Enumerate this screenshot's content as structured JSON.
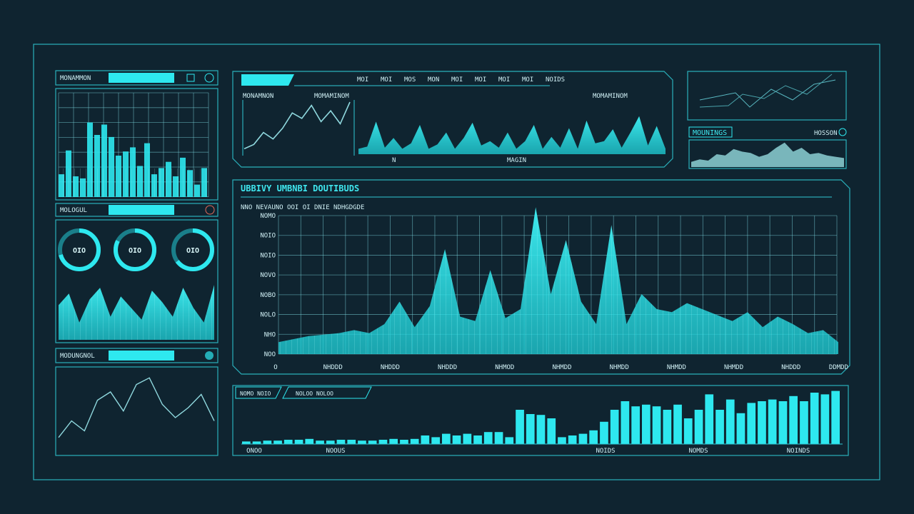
{
  "colors": {
    "background": "#0f2430",
    "accent": "#2ee8ef",
    "accent_dim": "#1a7f8a",
    "frame": "#2fc9d4",
    "text": "#d9f6f8"
  },
  "header": {
    "tabs": [
      "MOI",
      "MOI",
      "MOS",
      "MON",
      "MOI",
      "MOI",
      "MOI",
      "MOI",
      "NOIDS"
    ]
  },
  "left_top": {
    "title": "MONAMMON"
  },
  "left_mid": {
    "title": "MOLOGUL",
    "gauges": [
      {
        "label": "OIO"
      },
      {
        "label": "OIO"
      },
      {
        "label": "OIO"
      }
    ]
  },
  "left_bottom": {
    "title": "MODUNGNOL"
  },
  "top_center": {
    "left_label": "MONAMNON",
    "right_label": "MOMAMINOM",
    "axis_left": "N",
    "axis_right": "MAGIN"
  },
  "top_right": {
    "title": "MOUNINGS",
    "tag": "HOSSON"
  },
  "main_chart": {
    "title": "UBBIVY UMBNBI DOUTIBUDS",
    "subtitle": "NNO NEVAUNO OOI OI DNIE NDHGDGDE",
    "y_labels": [
      "NOMO",
      "NOIO",
      "NOIO",
      "NOVO",
      "NOBO",
      "NOLO",
      "NHO",
      "NOO"
    ],
    "x_labels": [
      "O",
      "NHDDD",
      "NHDDD",
      "NHDDD",
      "NHMOD",
      "NHMDD",
      "NHMDD",
      "NHMDD",
      "NHMDD",
      "NHDDD",
      "DDMDD"
    ]
  },
  "bottom_chart": {
    "tabs": [
      "NOMO NOIO",
      "NOLOO NOLOO"
    ],
    "x_labels": [
      "ONOO",
      "NOOUS",
      "NOIDS",
      "NOMDS",
      "NOINDS"
    ]
  },
  "chart_data": [
    {
      "type": "area",
      "name": "main",
      "values": [
        8,
        10,
        12,
        13,
        14,
        16,
        14,
        20,
        35,
        18,
        32,
        70,
        25,
        22,
        56,
        24,
        30,
        98,
        40,
        76,
        35,
        20,
        86,
        20,
        40,
        30,
        28,
        34,
        30,
        26,
        22,
        28,
        18,
        25,
        20,
        14,
        16,
        8
      ]
    },
    {
      "type": "bar",
      "name": "bottom",
      "values": [
        3,
        3,
        4,
        4,
        5,
        5,
        6,
        4,
        4,
        5,
        5,
        4,
        4,
        5,
        6,
        5,
        6,
        10,
        8,
        12,
        10,
        12,
        10,
        14,
        14,
        8,
        40,
        35,
        34,
        30,
        8,
        10,
        12,
        16,
        26,
        40,
        50,
        44,
        46,
        44,
        40,
        46,
        30,
        40,
        58,
        40,
        52,
        36,
        48,
        50,
        52,
        50,
        56,
        50,
        60,
        58,
        62
      ]
    },
    {
      "type": "bar",
      "name": "left_top",
      "values": [
        22,
        45,
        20,
        18,
        72,
        60,
        70,
        58,
        40,
        44,
        48,
        30,
        52,
        22,
        28,
        34,
        20,
        38,
        26,
        12,
        28
      ]
    },
    {
      "type": "line",
      "name": "top_center_left",
      "values": [
        10,
        18,
        40,
        28,
        48,
        76,
        66,
        90,
        60,
        80,
        56,
        96
      ]
    },
    {
      "type": "area",
      "name": "top_center_right",
      "values": [
        10,
        14,
        60,
        12,
        30,
        10,
        20,
        54,
        10,
        18,
        40,
        10,
        30,
        58,
        16,
        24,
        12,
        40,
        10,
        24,
        54,
        10,
        32,
        12,
        48,
        10,
        62,
        20,
        24,
        46,
        12,
        40,
        70,
        16,
        52,
        10
      ]
    },
    {
      "type": "area",
      "name": "top_right_small",
      "values": [
        8,
        12,
        10,
        20,
        18,
        28,
        24,
        22,
        16,
        20,
        30,
        38,
        24,
        30,
        20,
        22,
        18,
        16,
        14
      ]
    },
    {
      "type": "area",
      "name": "left_mid_wave",
      "values": [
        60,
        80,
        30,
        70,
        90,
        40,
        75,
        55,
        35,
        85,
        65,
        40,
        90,
        55,
        30,
        95
      ]
    },
    {
      "type": "line",
      "name": "left_bottom_line",
      "values": [
        20,
        40,
        28,
        65,
        75,
        52,
        84,
        92,
        60,
        44,
        56,
        72,
        40
      ]
    }
  ]
}
